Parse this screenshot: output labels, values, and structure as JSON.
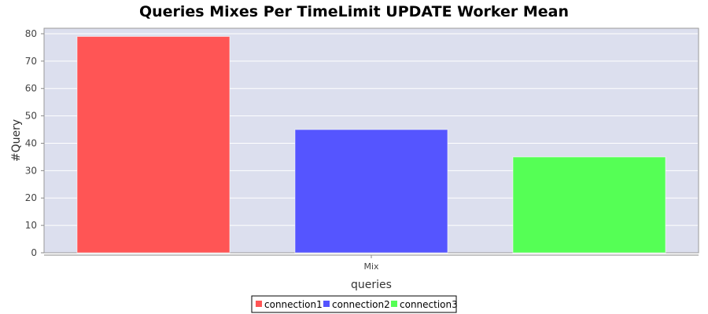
{
  "chart_data": {
    "type": "bar",
    "title": "Queries Mixes Per TimeLimit UPDATE Worker Mean",
    "xlabel": "queries",
    "ylabel": "#Query",
    "categories": [
      "Mix"
    ],
    "series": [
      {
        "name": "connection1",
        "values": [
          79
        ],
        "color": "#ff5555"
      },
      {
        "name": "connection2",
        "values": [
          45
        ],
        "color": "#5555ff"
      },
      {
        "name": "connection3",
        "values": [
          35
        ],
        "color": "#55ff55"
      }
    ],
    "ylim": [
      0,
      82
    ],
    "yticks": [
      0,
      10,
      20,
      30,
      40,
      50,
      60,
      70,
      80
    ],
    "grid": true,
    "legend_position": "bottom",
    "plot_background": "#dcdfee"
  }
}
